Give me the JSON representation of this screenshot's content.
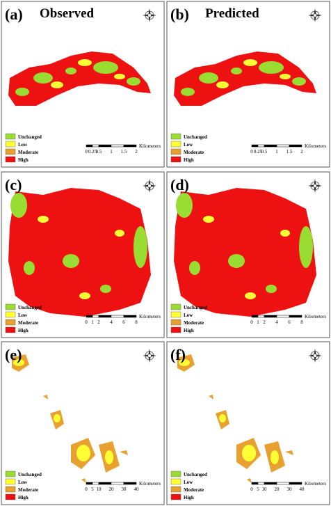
{
  "panels": [
    {
      "label": "(a)",
      "title": "Observed",
      "legend": [
        "Unchanged",
        "Low",
        "Moderate",
        "High"
      ],
      "scale": {
        "ticks": [
          "0",
          "0.25",
          "0.5",
          "1",
          "1.5",
          "2"
        ],
        "unit": "Kilometers"
      }
    },
    {
      "label": "(b)",
      "title": "Predicted",
      "legend": [
        "Unchanged",
        "Low",
        "Moderate",
        "High"
      ],
      "scale": {
        "ticks": [
          "0",
          "0.25",
          "0.5",
          "1",
          "1.5",
          "2"
        ],
        "unit": "Kilometers"
      }
    },
    {
      "label": "(c)",
      "legend": [
        "Unchanged",
        "Low",
        "Moderate",
        "High"
      ],
      "scale": {
        "ticks": [
          "0",
          "1",
          "2",
          "4",
          "6",
          "8"
        ],
        "unit": "Kilometers"
      }
    },
    {
      "label": "(d)",
      "legend": [
        "Unchanged",
        "Low",
        "Moderate",
        "High"
      ],
      "scale": {
        "ticks": [
          "0",
          "1",
          "2",
          "4",
          "6",
          "8"
        ],
        "unit": "Kilometers"
      }
    },
    {
      "label": "(e)",
      "legend": [
        "Unchanged",
        "Low",
        "Moderate",
        "High"
      ],
      "scale": {
        "ticks": [
          "0",
          "5",
          "10",
          "20",
          "30",
          "40"
        ],
        "unit": "Kilometers"
      }
    },
    {
      "label": "(f)",
      "legend": [
        "Unchanged",
        "Low",
        "Moderate",
        "High"
      ],
      "scale": {
        "ticks": [
          "0",
          "5",
          "10",
          "20",
          "30",
          "40"
        ],
        "unit": "Kilometers"
      }
    }
  ]
}
